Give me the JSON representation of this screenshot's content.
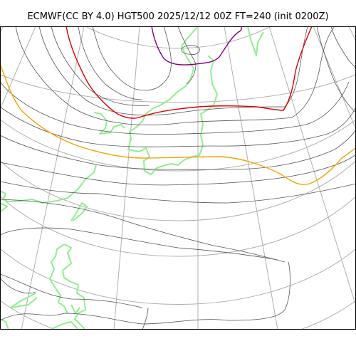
{
  "title": "ECMWF(CC BY 4.0) HGT500 2025/12/12 00Z FT=240 (init 0200Z)",
  "colors": {
    "contour": "#555555",
    "contour_5400": "#f5a300",
    "contour_5700": "#e00000",
    "contour_low": "#800080",
    "coastline": "#90ee90",
    "graticule": "#b0b0b0",
    "frame": "#000000"
  },
  "map": {
    "projection": "polar-stereographic",
    "graticule": "on",
    "coastlines": "on",
    "highlighted_contours": [
      "purple-low",
      "red",
      "orange"
    ]
  }
}
